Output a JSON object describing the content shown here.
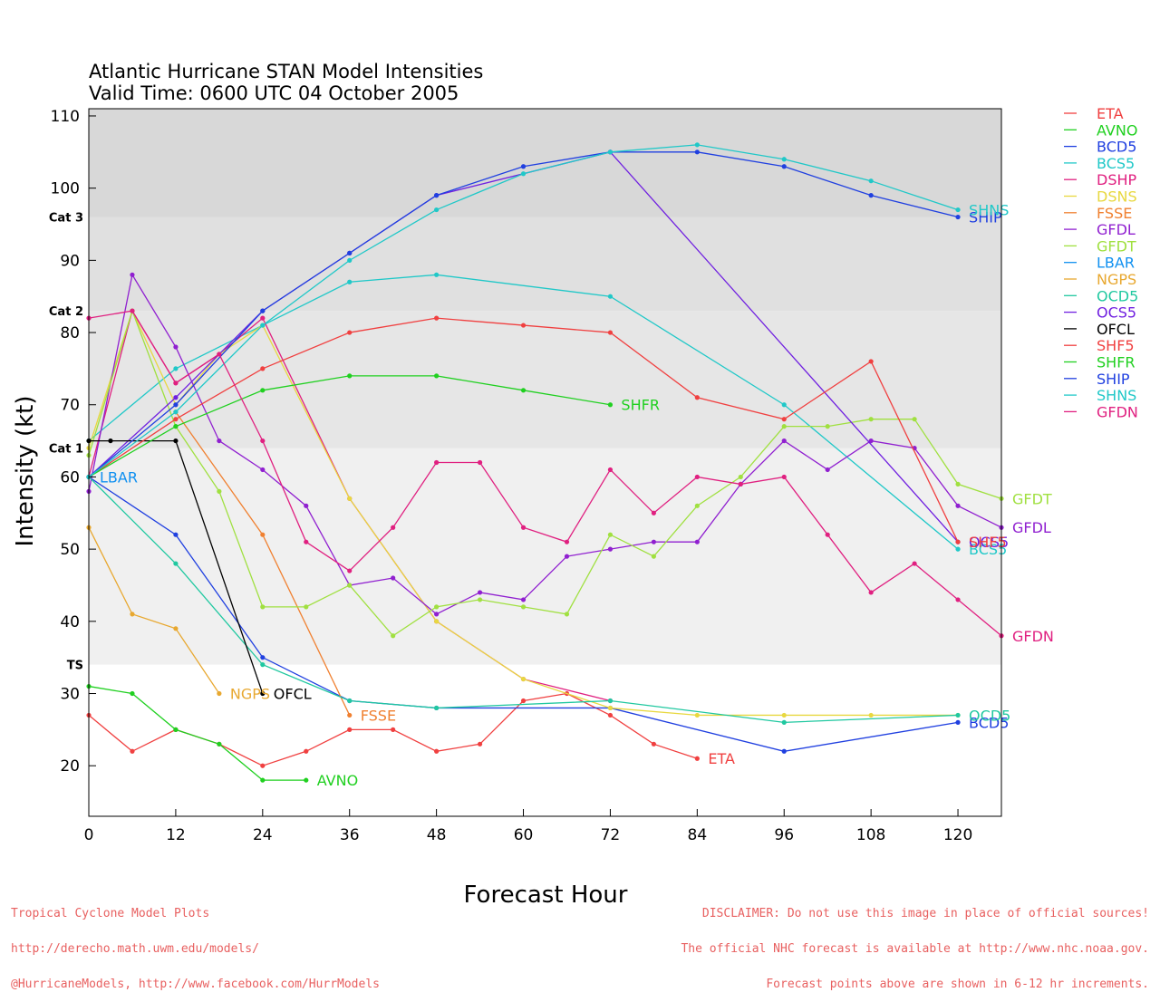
{
  "chart_data": {
    "type": "line",
    "title": "Atlantic Hurricane STAN Model Intensities",
    "subtitle": "Valid Time: 0600 UTC 04 October 2005",
    "xlabel": "Forecast Hour",
    "ylabel": "Intensity (kt)",
    "xlim": [
      0,
      126
    ],
    "ylim": [
      13,
      111
    ],
    "xticks": [
      0,
      12,
      24,
      36,
      48,
      60,
      72,
      84,
      96,
      108,
      120
    ],
    "yticks": [
      20,
      30,
      40,
      50,
      60,
      70,
      80,
      90,
      100,
      110
    ],
    "bands": [
      {
        "from": 13,
        "to": 34,
        "color": "#ffffff"
      },
      {
        "from": 34,
        "to": 64,
        "color": "#f0f0f0"
      },
      {
        "from": 64,
        "to": 83,
        "color": "#e6e6e6"
      },
      {
        "from": 83,
        "to": 96,
        "color": "#e0e0e0"
      },
      {
        "from": 96,
        "to": 111,
        "color": "#d8d8d8"
      }
    ],
    "category_labels": [
      {
        "label": "TS",
        "value": 34
      },
      {
        "label": "Cat 1",
        "value": 64
      },
      {
        "label": "Cat 2",
        "value": 83
      },
      {
        "label": "Cat 3",
        "value": 96
      }
    ],
    "series": [
      {
        "name": "ETA",
        "color": "#f04040",
        "label": "ETA",
        "x": [
          0,
          6,
          12,
          18,
          24,
          30,
          36,
          42,
          48,
          54,
          60,
          66,
          72,
          78,
          84
        ],
        "y": [
          27,
          22,
          25,
          23,
          20,
          22,
          25,
          25,
          22,
          23,
          29,
          30,
          27,
          23,
          21
        ]
      },
      {
        "name": "AVNO",
        "color": "#20d020",
        "label": "AVNO",
        "x": [
          0,
          6,
          12,
          18,
          24,
          30
        ],
        "y": [
          31,
          30,
          25,
          23,
          18,
          18
        ]
      },
      {
        "name": "BCD5",
        "color": "#2040e0",
        "label": "BCD5",
        "x": [
          0,
          12,
          24,
          36,
          48,
          72,
          96,
          120
        ],
        "y": [
          60,
          52,
          35,
          29,
          28,
          28,
          22,
          26
        ]
      },
      {
        "name": "BCS5",
        "color": "#20c8c8",
        "label": "BCS5",
        "x": [
          0,
          12,
          24,
          36,
          48,
          72,
          96,
          120
        ],
        "y": [
          65,
          75,
          81,
          87,
          88,
          85,
          70,
          50
        ]
      },
      {
        "name": "DSHP",
        "color": "#e02080",
        "label": "",
        "x": [
          0,
          6,
          12,
          18,
          24,
          36,
          48,
          60,
          72
        ],
        "y": [
          60,
          83,
          73,
          77,
          82,
          57,
          40,
          32,
          29
        ]
      },
      {
        "name": "DSNS",
        "color": "#e8d840",
        "label": "",
        "x": [
          0,
          6,
          12,
          18,
          24,
          36,
          48,
          60,
          72,
          84,
          96,
          108,
          120
        ],
        "y": [
          64,
          83,
          70,
          77,
          81,
          57,
          40,
          32,
          28,
          27,
          27,
          27,
          27
        ]
      },
      {
        "name": "FSSE",
        "color": "#f08030",
        "label": "FSSE",
        "x": [
          12,
          24,
          36
        ],
        "y": [
          69,
          52,
          27
        ]
      },
      {
        "name": "GFDL",
        "color": "#9020d0",
        "label": "GFDL",
        "x": [
          0,
          6,
          12,
          18,
          24,
          30,
          36,
          42,
          48,
          54,
          60,
          66,
          72,
          78,
          84,
          90,
          96,
          102,
          108,
          114,
          120,
          126
        ],
        "y": [
          58,
          88,
          78,
          65,
          61,
          56,
          45,
          46,
          41,
          44,
          43,
          49,
          50,
          51,
          51,
          59,
          65,
          61,
          65,
          64,
          56,
          53
        ]
      },
      {
        "name": "GFDT",
        "color": "#a0e040",
        "label": "GFDT",
        "x": [
          0,
          6,
          12,
          18,
          24,
          30,
          36,
          42,
          48,
          54,
          60,
          66,
          72,
          78,
          84,
          90,
          96,
          102,
          108,
          114,
          120,
          126
        ],
        "y": [
          63,
          83,
          67,
          58,
          42,
          42,
          45,
          38,
          42,
          43,
          42,
          41,
          52,
          49,
          56,
          60,
          67,
          67,
          68,
          68,
          59,
          57
        ]
      },
      {
        "name": "LBAR",
        "color": "#1090f0",
        "label": "LBAR",
        "x": [
          0
        ],
        "y": [
          60
        ]
      },
      {
        "name": "NGPS",
        "color": "#e8a830",
        "label": "NGPS",
        "x": [
          0,
          6,
          12,
          18
        ],
        "y": [
          53,
          41,
          39,
          30
        ]
      },
      {
        "name": "OCD5",
        "color": "#20c8a0",
        "label": "OCD5",
        "x": [
          0,
          12,
          24,
          36,
          48,
          72,
          96,
          120
        ],
        "y": [
          60,
          48,
          34,
          29,
          28,
          29,
          26,
          27
        ]
      },
      {
        "name": "OCS5",
        "color": "#7020e0",
        "label": "OCS5",
        "x": [
          0,
          12,
          24,
          36,
          48,
          72,
          120
        ],
        "y": [
          60,
          71,
          83,
          91,
          99,
          105,
          51
        ]
      },
      {
        "name": "OFCL",
        "color": "#000000",
        "label": "OFCL",
        "x": [
          0,
          3,
          12,
          24
        ],
        "y": [
          65,
          65,
          65,
          30
        ]
      },
      {
        "name": "SHF5",
        "color": "#f04040",
        "label": "SHF5",
        "x": [
          0,
          12,
          24,
          36,
          48,
          60,
          72,
          84,
          96,
          108,
          120
        ],
        "y": [
          60,
          68,
          75,
          80,
          82,
          81,
          80,
          71,
          68,
          76,
          51
        ]
      },
      {
        "name": "SHFR",
        "color": "#20d020",
        "label": "SHFR",
        "x": [
          0,
          12,
          24,
          36,
          48,
          60,
          72
        ],
        "y": [
          60,
          67,
          72,
          74,
          74,
          72,
          70
        ]
      },
      {
        "name": "SHIP",
        "color": "#2040e0",
        "label": "SHIP",
        "x": [
          0,
          12,
          24,
          36,
          48,
          60,
          72,
          84,
          96,
          108,
          120
        ],
        "y": [
          60,
          70,
          83,
          91,
          99,
          103,
          105,
          105,
          103,
          99,
          96
        ]
      },
      {
        "name": "SHNS",
        "color": "#20c8c8",
        "label": "SHNS",
        "x": [
          0,
          12,
          24,
          36,
          48,
          60,
          72,
          84,
          96,
          108,
          120
        ],
        "y": [
          60,
          69,
          81,
          90,
          97,
          102,
          105,
          106,
          104,
          101,
          97
        ]
      },
      {
        "name": "GFDN",
        "color": "#e02080",
        "label": "GFDN",
        "x": [
          0,
          6,
          12,
          18,
          24,
          30,
          36,
          42,
          48,
          54,
          60,
          66,
          72,
          78,
          84,
          90,
          96,
          102,
          108,
          114,
          120,
          126
        ],
        "y": [
          82,
          83,
          73,
          77,
          65,
          51,
          47,
          53,
          62,
          62,
          53,
          51,
          61,
          55,
          60,
          59,
          60,
          52,
          44,
          48,
          43,
          38
        ]
      }
    ],
    "legend_position": "right"
  },
  "footer": {
    "left": [
      "Tropical Cyclone Model Plots",
      "http://derecho.math.uwm.edu/models/",
      "@HurricaneModels, http://www.facebook.com/HurrModels"
    ],
    "right": [
      "DISCLAIMER: Do not use this image in place of official sources!",
      "The official NHC forecast is available at http://www.nhc.noaa.gov.",
      "Forecast points above are shown in 6-12 hr increments."
    ]
  }
}
